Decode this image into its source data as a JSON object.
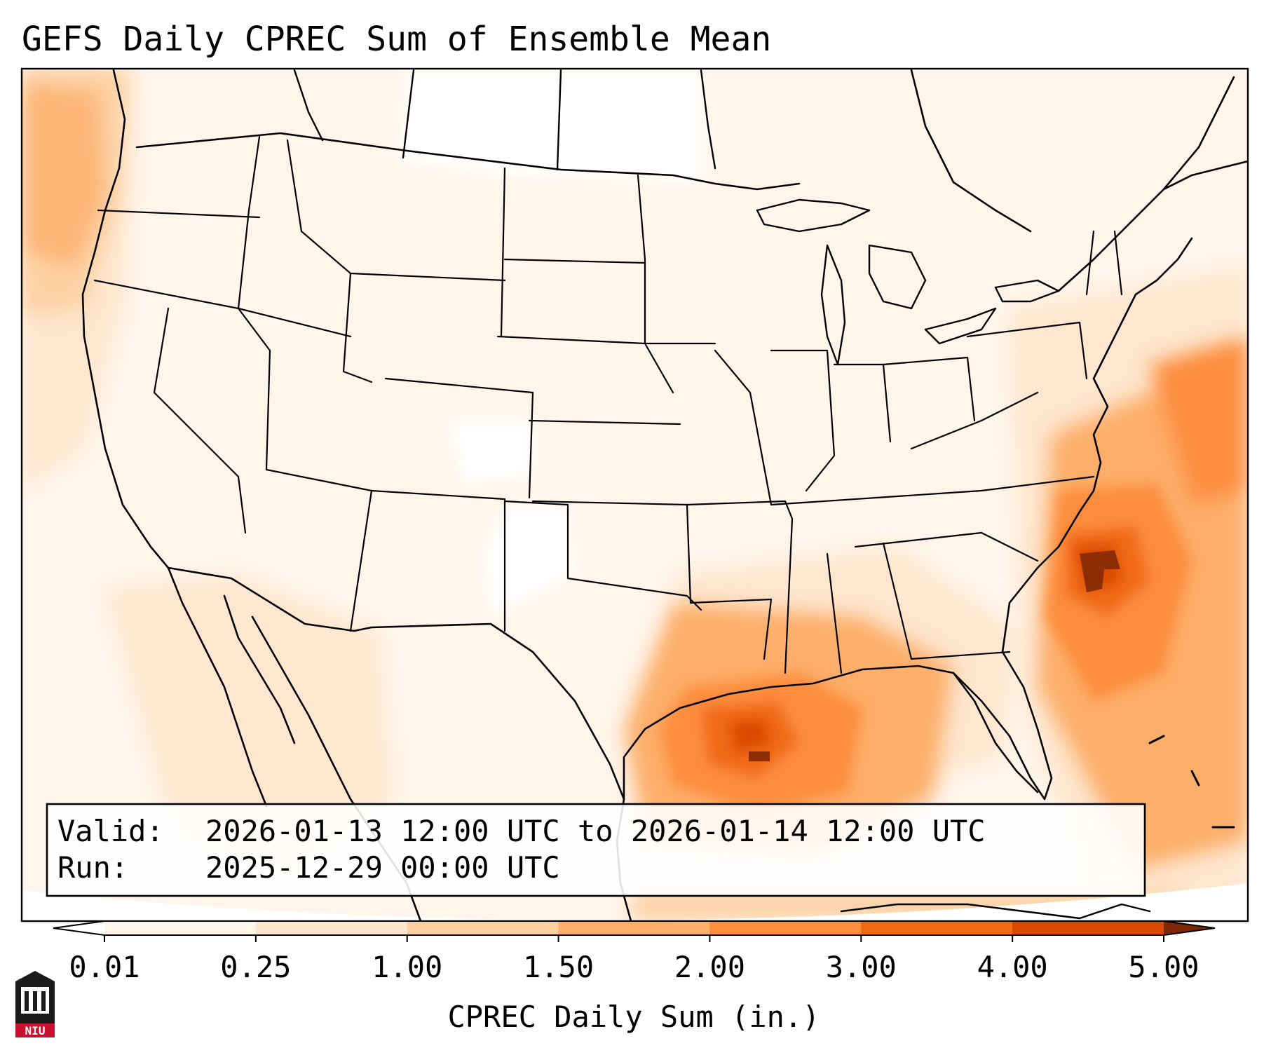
{
  "title": "GEFS Daily CPREC Sum of Ensemble Mean",
  "info_box": {
    "valid_label": "Valid:",
    "valid_value": "2026-01-13 12:00 UTC to 2026-01-14 12:00 UTC",
    "run_label": "Run:",
    "run_value": "2025-12-29 00:00 UTC"
  },
  "colorbar": {
    "label": "CPREC Daily Sum (in.)",
    "ticks": [
      "0.01",
      "0.25",
      "1.00",
      "1.50",
      "2.00",
      "3.00",
      "4.00",
      "5.00"
    ],
    "colors": [
      "#fff5eb",
      "#fee6ce",
      "#fdd0a2",
      "#fdae6b",
      "#fd8d3c",
      "#f16913",
      "#d94801",
      "#8c2d04"
    ],
    "under_color": "#ffffff",
    "over_color": "#7f2704"
  },
  "logo": {
    "text": "NIU",
    "icon": "university-tower-icon"
  },
  "map": {
    "projection": "lambert-conformal",
    "region": "CONUS",
    "maxima": [
      {
        "region": "Atlantic off Carolinas",
        "value_range": "4.00-5.00"
      },
      {
        "region": "Gulf of Mexico",
        "value_range": "4.00-5.00"
      }
    ]
  }
}
